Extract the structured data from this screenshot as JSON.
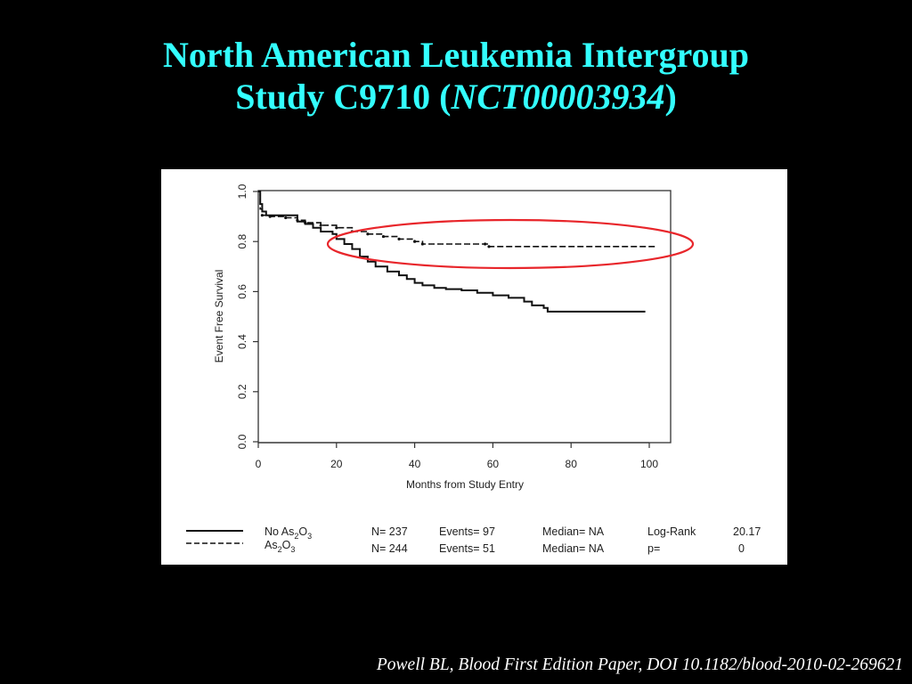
{
  "slide": {
    "title_line1": "North American Leukemia Intergroup",
    "title_line2_prefix": "Study C9710 (",
    "title_line2_italic": "NCT00003934",
    "title_line2_suffix": ")",
    "citation": "Powell BL, Blood First Edition Paper, DOI 10.1182/blood-2010-02-269621"
  },
  "colors": {
    "title": "#33ffff",
    "background": "#000000",
    "highlight_ellipse": "#e8262b"
  },
  "chart_data": {
    "type": "line",
    "xlabel": "Months from Study Entry",
    "ylabel": "Event Free Survival",
    "xlim": [
      0,
      105
    ],
    "ylim": [
      0,
      1.0
    ],
    "x_ticks": [
      "0",
      "20",
      "40",
      "60",
      "80",
      "100"
    ],
    "y_ticks": [
      "0.0",
      "0.2",
      "0.4",
      "0.6",
      "0.8",
      "1.0"
    ],
    "grid": false,
    "series": [
      {
        "name": "No As2O3",
        "label_base": "No As",
        "sub1": "2",
        "label_mid": "O",
        "sub2": "3",
        "style": "solid",
        "points": [
          [
            0,
            1.0
          ],
          [
            0.5,
            0.95
          ],
          [
            1,
            0.92
          ],
          [
            2,
            0.905
          ],
          [
            8,
            0.905
          ],
          [
            10,
            0.88
          ],
          [
            12,
            0.87
          ],
          [
            14,
            0.855
          ],
          [
            16,
            0.84
          ],
          [
            19,
            0.83
          ],
          [
            20,
            0.81
          ],
          [
            22,
            0.79
          ],
          [
            24,
            0.77
          ],
          [
            26,
            0.74
          ],
          [
            28,
            0.72
          ],
          [
            30,
            0.7
          ],
          [
            33,
            0.68
          ],
          [
            36,
            0.665
          ],
          [
            38,
            0.65
          ],
          [
            40,
            0.635
          ],
          [
            42,
            0.625
          ],
          [
            45,
            0.615
          ],
          [
            48,
            0.61
          ],
          [
            52,
            0.605
          ],
          [
            56,
            0.595
          ],
          [
            60,
            0.585
          ],
          [
            64,
            0.575
          ],
          [
            68,
            0.56
          ],
          [
            70,
            0.545
          ],
          [
            73,
            0.535
          ],
          [
            74,
            0.52
          ],
          [
            99,
            0.52
          ]
        ],
        "n": "N= 237",
        "events": "Events= 97",
        "median": "Median= NA"
      },
      {
        "name": "As2O3",
        "label_base": "As",
        "sub1": "2",
        "label_mid": "O",
        "sub2": "3",
        "style": "dashed",
        "points": [
          [
            0,
            1.0
          ],
          [
            0.5,
            0.93
          ],
          [
            1,
            0.905
          ],
          [
            3,
            0.9
          ],
          [
            7,
            0.895
          ],
          [
            10,
            0.885
          ],
          [
            12,
            0.875
          ],
          [
            16,
            0.865
          ],
          [
            20,
            0.855
          ],
          [
            24,
            0.84
          ],
          [
            28,
            0.83
          ],
          [
            32,
            0.82
          ],
          [
            36,
            0.81
          ],
          [
            40,
            0.8
          ],
          [
            42,
            0.79
          ],
          [
            58,
            0.79
          ],
          [
            59,
            0.78
          ],
          [
            102,
            0.78
          ]
        ],
        "n": "N= 244",
        "events": "Events= 51",
        "median": "Median= NA"
      }
    ],
    "stats": {
      "logrank_label": "Log-Rank",
      "logrank_value": "20.17",
      "p_label": "p=",
      "p_value": "0"
    }
  }
}
